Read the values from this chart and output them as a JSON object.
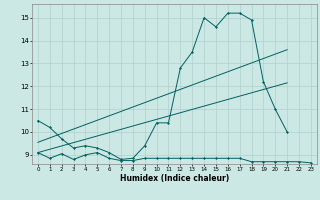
{
  "title": "",
  "xlabel": "Humidex (Indice chaleur)",
  "bg_color": "#cce8e4",
  "grid_color": "#b0d0cc",
  "line_color": "#006060",
  "xlim": [
    -0.5,
    23.5
  ],
  "ylim": [
    8.6,
    15.6
  ],
  "xticks": [
    0,
    1,
    2,
    3,
    4,
    5,
    6,
    7,
    8,
    9,
    10,
    11,
    12,
    13,
    14,
    15,
    16,
    17,
    18,
    19,
    20,
    21,
    22,
    23
  ],
  "yticks": [
    9,
    10,
    11,
    12,
    13,
    14,
    15
  ],
  "line1_x": [
    0,
    1,
    2,
    3,
    4,
    5,
    6,
    7,
    8,
    9,
    10,
    11,
    12,
    13,
    14,
    15,
    16,
    17,
    18,
    19,
    20,
    21
  ],
  "line1_y": [
    10.5,
    10.2,
    9.7,
    9.3,
    9.4,
    9.3,
    9.1,
    8.8,
    8.85,
    9.4,
    10.4,
    10.4,
    12.8,
    13.5,
    15.0,
    14.6,
    15.2,
    15.2,
    14.9,
    12.2,
    11.0,
    10.0
  ],
  "line2_x": [
    0,
    21
  ],
  "line2_y": [
    9.55,
    13.6
  ],
  "line3_x": [
    0,
    21
  ],
  "line3_y": [
    9.1,
    12.15
  ],
  "line4_x": [
    0,
    1,
    2,
    3,
    4,
    5,
    6,
    7,
    8,
    9,
    10,
    11,
    12,
    13,
    14,
    15,
    16,
    17,
    18,
    19,
    20,
    21,
    22,
    23
  ],
  "line4_y": [
    9.1,
    8.85,
    9.05,
    8.8,
    9.0,
    9.1,
    8.85,
    8.75,
    8.75,
    8.85,
    8.85,
    8.85,
    8.85,
    8.85,
    8.85,
    8.85,
    8.85,
    8.85,
    8.7,
    8.7,
    8.7,
    8.7,
    8.7,
    8.65
  ]
}
